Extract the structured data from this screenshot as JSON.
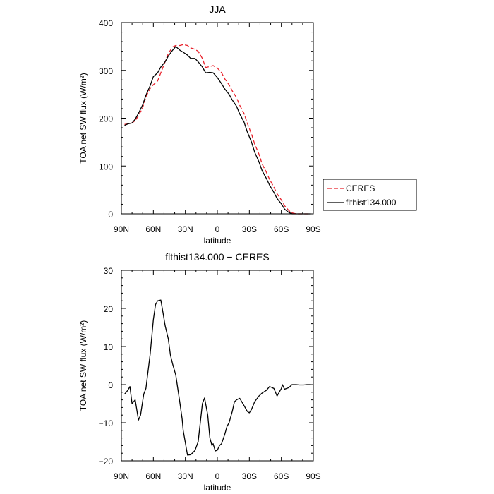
{
  "chart_data": [
    {
      "type": "line",
      "title": "JJA",
      "xlabel": "latitude",
      "ylabel": "TOA net SW flux (W/m²)",
      "xlim": [
        90,
        -90
      ],
      "ylim": [
        0,
        400
      ],
      "x_ticks": [
        90,
        60,
        30,
        0,
        -30,
        -60,
        -90
      ],
      "x_tick_labels": [
        "90N",
        "60N",
        "30N",
        "0",
        "30S",
        "60S",
        "90S"
      ],
      "y_ticks": [
        0,
        100,
        200,
        300,
        400
      ],
      "y_tick_labels": [
        "0",
        "100",
        "200",
        "300",
        "400"
      ],
      "grid": false,
      "legend": {
        "placement": "right-outside",
        "entries": [
          {
            "label": "CERES",
            "series": 0
          },
          {
            "label": "flthist134.000",
            "series": 1
          }
        ]
      },
      "series": [
        {
          "name": "CERES",
          "color": "#e8202a",
          "dash": "dashed",
          "x": [
            87,
            84,
            80,
            77,
            74,
            70,
            67,
            63,
            60,
            56,
            53,
            49,
            46,
            42,
            39,
            35,
            32,
            28,
            25,
            21,
            18,
            14,
            11,
            7,
            4,
            0,
            -4,
            -7,
            -11,
            -14,
            -18,
            -21,
            -25,
            -28,
            -32,
            -35,
            -39,
            -42,
            -46,
            -49,
            -53,
            -56,
            -60,
            -63,
            -67,
            -70,
            -74,
            -77,
            -81,
            -84,
            -87
          ],
          "y": [
            187,
            188,
            190,
            195,
            205,
            222,
            245,
            262,
            270,
            278,
            295,
            318,
            335,
            349,
            352,
            352,
            354,
            352,
            347,
            344,
            340,
            325,
            306,
            308,
            310,
            305,
            295,
            282,
            270,
            257,
            243,
            227,
            210,
            190,
            167,
            146,
            125,
            104,
            87,
            72,
            56,
            42,
            29,
            17,
            7,
            2,
            0,
            0,
            0,
            0,
            0
          ]
        },
        {
          "name": "flthist134.000",
          "color": "#000000",
          "dash": "solid",
          "x": [
            87,
            84,
            80,
            77,
            74,
            70,
            67,
            63,
            60,
            56,
            53,
            49,
            46,
            42,
            39,
            35,
            32,
            28,
            25,
            21,
            18,
            14,
            11,
            7,
            4,
            0,
            -4,
            -7,
            -11,
            -14,
            -18,
            -21,
            -25,
            -28,
            -32,
            -35,
            -39,
            -42,
            -46,
            -49,
            -53,
            -56,
            -60,
            -63,
            -67,
            -70,
            -74,
            -77,
            -81,
            -84,
            -87
          ],
          "y": [
            185,
            188,
            190,
            198,
            210,
            228,
            248,
            268,
            287,
            295,
            307,
            318,
            330,
            342,
            350,
            342,
            338,
            332,
            325,
            325,
            318,
            307,
            295,
            296,
            295,
            285,
            272,
            261,
            250,
            238,
            225,
            209,
            192,
            172,
            150,
            129,
            109,
            90,
            74,
            60,
            45,
            32,
            21,
            10,
            3,
            0,
            0,
            0,
            0,
            0,
            0
          ]
        }
      ]
    },
    {
      "type": "line",
      "title": "flthist134.000 − CERES",
      "xlabel": "latitude",
      "ylabel": "TOA net SW flux (W/m²)",
      "xlim": [
        90,
        -90
      ],
      "ylim": [
        -20,
        30
      ],
      "x_ticks": [
        90,
        60,
        30,
        0,
        -30,
        -60,
        -90
      ],
      "x_tick_labels": [
        "90N",
        "60N",
        "30N",
        "0",
        "30S",
        "60S",
        "90S"
      ],
      "y_ticks": [
        -20,
        -10,
        0,
        10,
        20,
        30
      ],
      "y_tick_labels": [
        "−20",
        "−10",
        "0",
        "10",
        "20",
        "30"
      ],
      "grid": false,
      "series": [
        {
          "color": "#000000",
          "dash": "solid",
          "x": [
            87,
            84,
            82,
            80,
            77,
            74,
            72,
            69,
            67,
            63,
            60,
            58,
            56,
            53,
            51,
            49,
            46,
            44,
            42,
            39,
            35,
            33,
            32,
            28,
            25,
            21,
            18,
            16,
            14,
            12,
            11,
            9,
            7,
            5,
            4,
            2,
            0,
            -2,
            -4,
            -7,
            -9,
            -11,
            -14,
            -16,
            -18,
            -21,
            -25,
            -28,
            -30,
            -32,
            -35,
            -39,
            -42,
            -46,
            -49,
            -53,
            -56,
            -60,
            -61,
            -63,
            -65,
            -67,
            -70,
            -74,
            -77,
            -81,
            -84,
            -87
          ],
          "y": [
            -2.5,
            -1.5,
            -0.5,
            -5,
            -4,
            -9.3,
            -8,
            -2.5,
            -1,
            8,
            17,
            21,
            22,
            22.2,
            19,
            15.5,
            12,
            7.8,
            5.5,
            2.5,
            -5,
            -9,
            -12,
            -18.5,
            -18.4,
            -17.3,
            -15,
            -10,
            -5,
            -3.5,
            -5,
            -8,
            -14,
            -16,
            -15.5,
            -17.4,
            -17.2,
            -16,
            -15.5,
            -13,
            -11,
            -10,
            -7,
            -4.5,
            -4,
            -3.6,
            -5.5,
            -7,
            -7.4,
            -6.5,
            -4.5,
            -3,
            -2.2,
            -1.5,
            -0.5,
            -1,
            -3,
            -1,
            0,
            -1.2,
            -1,
            -0.8,
            0,
            0,
            -0.1,
            -0.1,
            0,
            0
          ]
        }
      ]
    }
  ]
}
